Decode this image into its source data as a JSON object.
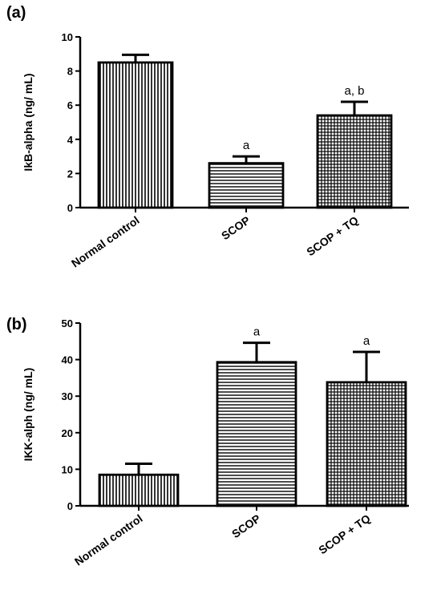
{
  "chart_data": [
    {
      "type": "bar",
      "panel_label": "(a)",
      "ylabel": "IkB-alpha (ng/ mL)",
      "ylim": [
        0,
        10
      ],
      "yticks": [
        0,
        2,
        4,
        6,
        8,
        10
      ],
      "categories": [
        "Normal control",
        "SCOP",
        "SCOP + TQ"
      ],
      "values": [
        8.5,
        2.6,
        5.4
      ],
      "errors": [
        0.45,
        0.4,
        0.8
      ],
      "significance": [
        "",
        "a",
        "a, b"
      ],
      "patterns": [
        "vertical-lines",
        "horizontal-lines",
        "crosshatch"
      ],
      "grid": false
    },
    {
      "type": "bar",
      "panel_label": "(b)",
      "ylabel": "IKK-alph (ng/ mL)",
      "ylim": [
        0,
        50
      ],
      "yticks": [
        0,
        10,
        20,
        30,
        40,
        50
      ],
      "categories": [
        "Normal control",
        "SCOP",
        "SCOP + TQ"
      ],
      "values": [
        8.5,
        39.3,
        33.8
      ],
      "errors": [
        3.0,
        5.3,
        8.3
      ],
      "significance": [
        "",
        "a",
        "a"
      ],
      "patterns": [
        "vertical-lines",
        "horizontal-lines",
        "crosshatch"
      ],
      "grid": false
    }
  ]
}
